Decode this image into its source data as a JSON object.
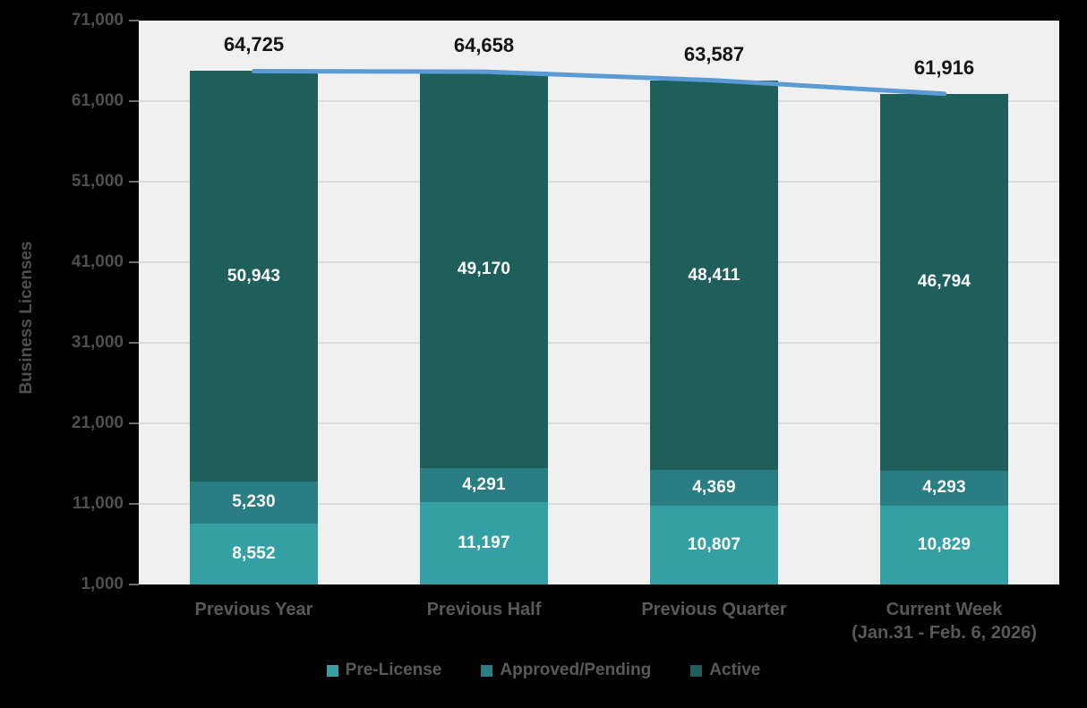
{
  "page": {
    "background": "#000000"
  },
  "chart_data": {
    "type": "bar",
    "stacked": true,
    "title": "",
    "xlabel": "",
    "ylabel": "Business Licenses",
    "grid": true,
    "legend_position": "bottom",
    "plot_bg": "#F0F0F0",
    "grid_color": "#DBDBDB",
    "categories": [
      {
        "label": "Previous Year",
        "sublabel": ""
      },
      {
        "label": "Previous Half",
        "sublabel": ""
      },
      {
        "label": "Previous Quarter",
        "sublabel": ""
      },
      {
        "label": "Current Week",
        "sublabel": "(Jan.31 - Feb. 6, 2026)"
      }
    ],
    "series": [
      {
        "name": "Pre-License",
        "color": "#34A0A4",
        "values": [
          8552,
          11197,
          10807,
          10829
        ]
      },
      {
        "name": "Approved/Pending",
        "color": "#2A7D83",
        "values": [
          5230,
          4291,
          4369,
          4293
        ]
      },
      {
        "name": "Active",
        "color": "#1F5F5B",
        "values": [
          50943,
          49170,
          48411,
          46794
        ]
      }
    ],
    "totals": [
      64725,
      64658,
      63587,
      61916
    ],
    "overlay_line": {
      "name": "Total",
      "values": [
        64725,
        64658,
        63587,
        61916
      ],
      "color": "#5B9BD5",
      "stroke_width": 5
    },
    "y_axis": {
      "min": 1000,
      "max": 71000,
      "tick_step": 10000,
      "ticks": [
        1000,
        11000,
        21000,
        31000,
        41000,
        51000,
        61000,
        71000
      ],
      "tick_labels": [
        "1,000",
        "11,000",
        "21,000",
        "31,000",
        "41,000",
        "51,000",
        "61,000",
        "71,000"
      ]
    },
    "legend": [
      "Pre-License",
      "Approved/Pending",
      "Active"
    ],
    "colors": {
      "total_label": "#151515",
      "bar_value_label": "#FFFFFF",
      "axis_label": "#4F4F4F",
      "category_label": "#595959"
    }
  }
}
